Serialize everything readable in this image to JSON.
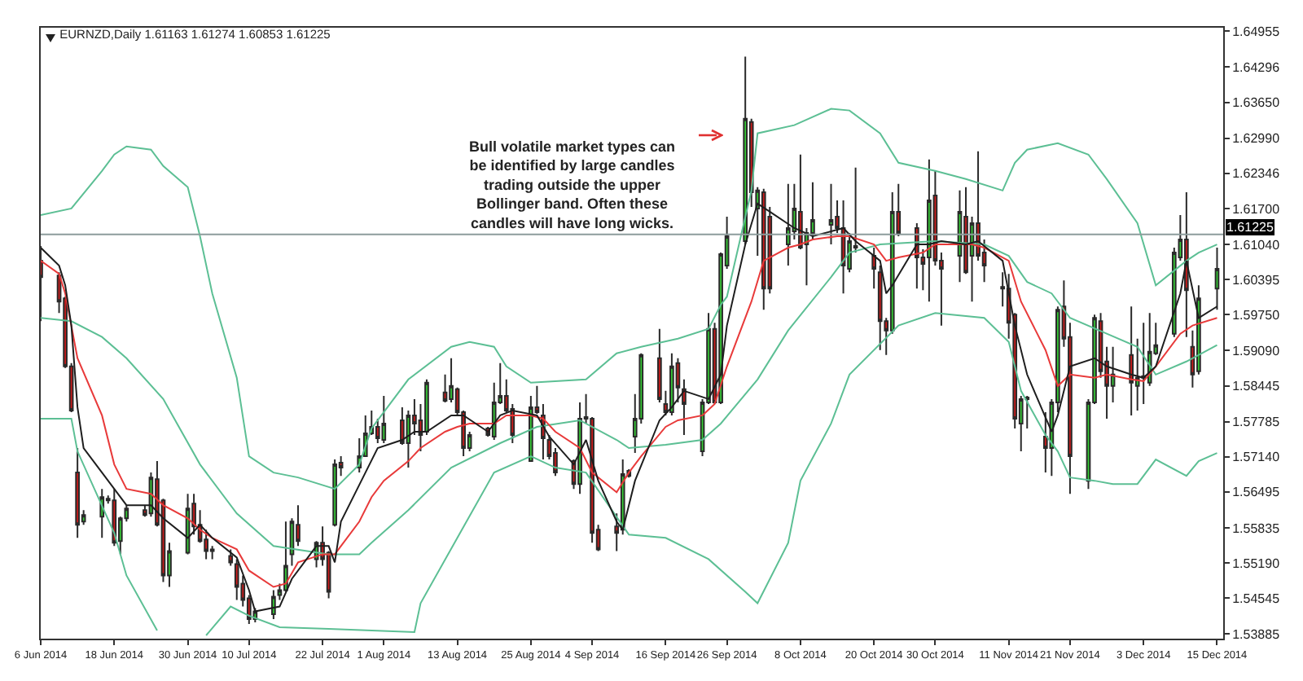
{
  "chart_data": {
    "type": "candlestick",
    "title": "EURNZD,Daily 1.61163 1.61274 1.60853 1.61225",
    "x": [
      "2014-06-06",
      "2014-06-09",
      "2014-06-10",
      "2014-06-11",
      "2014-06-12",
      "2014-06-13",
      "2014-06-16",
      "2014-06-17",
      "2014-06-18",
      "2014-06-19",
      "2014-06-20",
      "2014-06-23",
      "2014-06-24",
      "2014-06-25",
      "2014-06-26",
      "2014-06-27",
      "2014-06-30",
      "2014-07-01",
      "2014-07-02",
      "2014-07-03",
      "2014-07-04",
      "2014-07-07",
      "2014-07-08",
      "2014-07-09",
      "2014-07-10",
      "2014-07-11",
      "2014-07-14",
      "2014-07-15",
      "2014-07-16",
      "2014-07-17",
      "2014-07-18",
      "2014-07-21",
      "2014-07-22",
      "2014-07-23",
      "2014-07-24",
      "2014-07-25",
      "2014-07-28",
      "2014-07-29",
      "2014-07-30",
      "2014-07-31",
      "2014-08-01",
      "2014-08-04",
      "2014-08-05",
      "2014-08-06",
      "2014-08-07",
      "2014-08-08",
      "2014-08-11",
      "2014-08-12",
      "2014-08-13",
      "2014-08-14",
      "2014-08-15",
      "2014-08-18",
      "2014-08-19",
      "2014-08-20",
      "2014-08-21",
      "2014-08-22",
      "2014-08-25",
      "2014-08-26",
      "2014-08-27",
      "2014-08-28",
      "2014-08-29",
      "2014-09-01",
      "2014-09-02",
      "2014-09-03",
      "2014-09-04",
      "2014-09-05",
      "2014-09-08",
      "2014-09-09",
      "2014-09-10",
      "2014-09-11",
      "2014-09-12",
      "2014-09-15",
      "2014-09-16",
      "2014-09-17",
      "2014-09-18",
      "2014-09-19",
      "2014-09-22",
      "2014-09-23",
      "2014-09-24",
      "2014-09-25",
      "2014-09-26",
      "2014-09-29",
      "2014-09-30",
      "2014-10-01",
      "2014-10-02",
      "2014-10-03",
      "2014-10-06",
      "2014-10-07",
      "2014-10-08",
      "2014-10-09",
      "2014-10-10",
      "2014-10-13",
      "2014-10-14",
      "2014-10-15",
      "2014-10-16",
      "2014-10-17",
      "2014-10-20",
      "2014-10-21",
      "2014-10-22",
      "2014-10-23",
      "2014-10-24",
      "2014-10-27",
      "2014-10-28",
      "2014-10-29",
      "2014-10-30",
      "2014-10-31",
      "2014-11-03",
      "2014-11-04",
      "2014-11-05",
      "2014-11-06",
      "2014-11-07",
      "2014-11-10",
      "2014-11-11",
      "2014-11-12",
      "2014-11-13",
      "2014-11-14",
      "2014-11-17",
      "2014-11-18",
      "2014-11-19",
      "2014-11-20",
      "2014-11-21",
      "2014-11-24",
      "2014-11-25",
      "2014-11-26",
      "2014-11-27",
      "2014-11-28",
      "2014-12-01",
      "2014-12-02",
      "2014-12-03",
      "2014-12-04",
      "2014-12-05",
      "2014-12-08",
      "2014-12-09",
      "2014-12-10",
      "2014-12-11",
      "2014-12-12",
      "2014-12-15"
    ],
    "ohlc": [
      [
        1.6074,
        1.6101,
        1.5963,
        1.6044
      ],
      [
        1.6047,
        1.6053,
        1.5978,
        1.5999
      ],
      [
        1.6005,
        1.6008,
        1.5877,
        1.588
      ],
      [
        1.588,
        1.5886,
        1.5796,
        1.5799
      ],
      [
        1.5685,
        1.573,
        1.5565,
        1.5589
      ],
      [
        1.5595,
        1.5616,
        1.5589,
        1.5607
      ],
      [
        1.5604,
        1.5655,
        1.5565,
        1.564
      ],
      [
        1.5634,
        1.5643,
        1.5628,
        1.5637
      ],
      [
        1.5634,
        1.5655,
        1.555,
        1.5556
      ],
      [
        1.5559,
        1.5604,
        1.5535,
        1.5601
      ],
      [
        1.5601,
        1.5625,
        1.5595,
        1.5619
      ],
      [
        1.5616,
        1.5625,
        1.5604,
        1.5607
      ],
      [
        1.561,
        1.5685,
        1.5604,
        1.5676
      ],
      [
        1.5673,
        1.5706,
        1.5586,
        1.5589
      ],
      [
        1.5634,
        1.5637,
        1.5484,
        1.5496
      ],
      [
        1.5496,
        1.5556,
        1.5475,
        1.5541
      ],
      [
        1.5538,
        1.5646,
        1.5535,
        1.5619
      ],
      [
        1.5628,
        1.5646,
        1.5571,
        1.5586
      ],
      [
        1.5589,
        1.5616,
        1.5556,
        1.5559
      ],
      [
        1.5562,
        1.558,
        1.5526,
        1.5541
      ],
      [
        1.5544,
        1.555,
        1.5526,
        1.5541
      ],
      [
        1.5532,
        1.5544,
        1.5514,
        1.552
      ],
      [
        1.5517,
        1.5526,
        1.5451,
        1.5475
      ],
      [
        1.5481,
        1.5496,
        1.5439,
        1.5451
      ],
      [
        1.5454,
        1.546,
        1.5407,
        1.5416
      ],
      [
        1.5416,
        1.5436,
        1.541,
        1.543
      ],
      [
        1.5425,
        1.5469,
        1.5416,
        1.5457
      ],
      [
        1.546,
        1.5481,
        1.5451,
        1.5469
      ],
      [
        1.5469,
        1.5595,
        1.5466,
        1.5514
      ],
      [
        1.5535,
        1.5601,
        1.5514,
        1.5595
      ],
      [
        1.5589,
        1.5625,
        1.555,
        1.5559
      ],
      [
        1.5526,
        1.5559,
        1.5511,
        1.5556
      ],
      [
        1.5556,
        1.5586,
        1.5514,
        1.5526
      ],
      [
        1.5538,
        1.5541,
        1.5454,
        1.5466
      ],
      [
        1.5589,
        1.5709,
        1.5586,
        1.57
      ],
      [
        1.5703,
        1.5715,
        1.5679,
        1.5694
      ],
      [
        1.5694,
        1.5748,
        1.5685,
        1.5715
      ],
      [
        1.5715,
        1.579,
        1.5715,
        1.5757
      ],
      [
        1.5757,
        1.5799,
        1.5754,
        1.5769
      ],
      [
        1.5769,
        1.5784,
        1.5739,
        1.5748
      ],
      [
        1.5745,
        1.5826,
        1.5739,
        1.5775
      ],
      [
        1.5781,
        1.5805,
        1.5736,
        1.5739
      ],
      [
        1.5739,
        1.5799,
        1.5694,
        1.579
      ],
      [
        1.579,
        1.582,
        1.5754,
        1.5775
      ],
      [
        1.5781,
        1.5811,
        1.5724,
        1.5754
      ],
      [
        1.576,
        1.5856,
        1.5754,
        1.585
      ],
      [
        1.5832,
        1.5865,
        1.5814,
        1.5817
      ],
      [
        1.582,
        1.5895,
        1.5814,
        1.5844
      ],
      [
        1.5838,
        1.5841,
        1.579,
        1.5796
      ],
      [
        1.5796,
        1.5799,
        1.5715,
        1.573
      ],
      [
        1.573,
        1.576,
        1.5724,
        1.5754
      ],
      [
        1.5766,
        1.5769,
        1.5751,
        1.5754
      ],
      [
        1.5751,
        1.585,
        1.5745,
        1.5814
      ],
      [
        1.5814,
        1.5886,
        1.5811,
        1.5826
      ],
      [
        1.5826,
        1.5856,
        1.5796,
        1.5799
      ],
      [
        1.5802,
        1.5811,
        1.5739,
        1.5754
      ],
      [
        1.5706,
        1.5826,
        1.5706,
        1.5805
      ],
      [
        1.5805,
        1.5844,
        1.5793,
        1.5796
      ],
      [
        1.579,
        1.5811,
        1.5709,
        1.5748
      ],
      [
        1.5745,
        1.5754,
        1.5709,
        1.5715
      ],
      [
        1.5721,
        1.573,
        1.5679,
        1.5685
      ],
      [
        1.5706,
        1.5709,
        1.5655,
        1.5664
      ],
      [
        1.5664,
        1.5814,
        1.5646,
        1.5784
      ],
      [
        1.5784,
        1.5829,
        1.5775,
        1.5787
      ],
      [
        1.5784,
        1.5787,
        1.5556,
        1.5574
      ],
      [
        1.558,
        1.5589,
        1.5541,
        1.5544
      ],
      [
        1.5586,
        1.561,
        1.5541,
        1.5574
      ],
      [
        1.558,
        1.5709,
        1.5571,
        1.5682
      ],
      [
        1.5688,
        1.5691,
        1.5676,
        1.5679
      ],
      [
        1.5751,
        1.5829,
        1.5721,
        1.5784
      ],
      [
        1.5784,
        1.5904,
        1.5775,
        1.5901
      ],
      [
        1.5895,
        1.5949,
        1.5814,
        1.582
      ],
      [
        1.5811,
        1.5835,
        1.579,
        1.5796
      ],
      [
        1.5796,
        1.5904,
        1.579,
        1.588
      ],
      [
        1.5886,
        1.5895,
        1.5814,
        1.5841
      ],
      [
        1.5838,
        1.5856,
        1.5754,
        1.5811
      ],
      [
        1.5724,
        1.582,
        1.5715,
        1.5814
      ],
      [
        1.5814,
        1.5978,
        1.5811,
        1.5949
      ],
      [
        1.5949,
        1.596,
        1.5811,
        1.5814
      ],
      [
        1.5814,
        1.6089,
        1.5811,
        1.6086
      ],
      [
        1.6065,
        1.6155,
        1.6059,
        1.6119
      ],
      [
        1.611,
        1.6449,
        1.6104,
        1.6335
      ],
      [
        1.6329,
        1.6335,
        1.6173,
        1.62
      ],
      [
        1.617,
        1.6209,
        1.6083,
        1.6203
      ],
      [
        1.62,
        1.6206,
        1.5984,
        1.6023
      ],
      [
        1.6155,
        1.6173,
        1.6014,
        1.6023
      ],
      [
        1.6104,
        1.6215,
        1.6065,
        1.6134
      ],
      [
        1.6128,
        1.6215,
        1.6113,
        1.617
      ],
      [
        1.6164,
        1.6269,
        1.6095,
        1.6098
      ],
      [
        1.6104,
        1.6134,
        1.6029,
        1.6125
      ],
      [
        1.6125,
        1.6218,
        1.6113,
        1.6149
      ],
      [
        1.614,
        1.6215,
        1.6104,
        1.6149
      ],
      [
        1.6155,
        1.6185,
        1.6125,
        1.6134
      ],
      [
        1.6134,
        1.6185,
        1.6014,
        1.6065
      ],
      [
        1.6059,
        1.6125,
        1.6053,
        1.611
      ],
      [
        1.6098,
        1.6245,
        1.6089,
        1.6101
      ],
      [
        1.6083,
        1.6098,
        1.6023,
        1.6059
      ],
      [
        1.6053,
        1.6065,
        1.591,
        1.5963
      ],
      [
        1.5963,
        1.5969,
        1.5901,
        1.5946
      ],
      [
        1.5946,
        1.62,
        1.594,
        1.6164
      ],
      [
        1.6164,
        1.6215,
        1.6119,
        1.6125
      ],
      [
        1.6134,
        1.6143,
        1.6023,
        1.608
      ],
      [
        1.608,
        1.6095,
        1.602,
        1.6068
      ],
      [
        1.608,
        1.626,
        1.5999,
        1.6185
      ],
      [
        1.6194,
        1.6239,
        1.6065,
        1.6074
      ],
      [
        1.6074,
        1.6089,
        1.5955,
        1.6059
      ],
      [
        1.6083,
        1.6203,
        1.6035,
        1.6164
      ],
      [
        1.6155,
        1.6209,
        1.605,
        1.6053
      ],
      [
        1.6083,
        1.6155,
        1.5999,
        1.6143
      ],
      [
        1.6143,
        1.6275,
        1.6074,
        1.6083
      ],
      [
        1.6089,
        1.6113,
        1.6035,
        1.6065
      ],
      [
        1.6023,
        1.6053,
        1.599,
        1.6026
      ],
      [
        1.6023,
        1.605,
        1.5931,
        1.596
      ],
      [
        1.5975,
        1.5978,
        1.5766,
        1.5784
      ],
      [
        1.5775,
        1.5826,
        1.5724,
        1.582
      ],
      [
        1.582,
        1.5826,
        1.5766,
        1.5823
      ],
      [
        1.5751,
        1.5796,
        1.5685,
        1.573
      ],
      [
        1.573,
        1.582,
        1.5679,
        1.5814
      ],
      [
        1.5814,
        1.599,
        1.5796,
        1.5984
      ],
      [
        1.599,
        1.6038,
        1.5916,
        1.5931
      ],
      [
        1.5934,
        1.596,
        1.5646,
        1.5715
      ],
      [
        1.567,
        1.582,
        1.5655,
        1.5814
      ],
      [
        1.5814,
        1.5975,
        1.5811,
        1.5969
      ],
      [
        1.5963,
        1.5978,
        1.5859,
        1.5871
      ],
      [
        1.5889,
        1.5916,
        1.5784,
        1.5844
      ],
      [
        1.5844,
        1.5916,
        1.5814,
        1.5865
      ],
      [
        1.5901,
        1.599,
        1.579,
        1.585
      ],
      [
        1.5844,
        1.5931,
        1.5799,
        1.5859
      ],
      [
        1.5859,
        1.596,
        1.5811,
        1.5862
      ],
      [
        1.585,
        1.5978,
        1.5844,
        1.5907
      ],
      [
        1.5904,
        1.596,
        1.5901,
        1.5919
      ],
      [
        1.594,
        1.6098,
        1.5934,
        1.6089
      ],
      [
        1.608,
        1.6158,
        1.6074,
        1.6113
      ],
      [
        1.6113,
        1.62,
        1.5934,
        1.602
      ],
      [
        1.5916,
        1.5946,
        1.5841,
        1.5865
      ],
      [
        1.5871,
        1.6029,
        1.5865,
        1.6005
      ],
      [
        1.6023,
        1.6098,
        1.5984,
        1.6059
      ]
    ],
    "series": [
      {
        "type": "line",
        "color": "#5cbf94",
        "x": [
          "2014-06-06",
          "2014-06-11",
          "2014-06-16",
          "2014-06-18",
          "2014-06-20",
          "2014-06-24",
          "2014-06-26",
          "2014-06-30",
          "2014-07-02",
          "2014-07-04",
          "2014-07-08",
          "2014-07-10",
          "2014-07-14",
          "2014-07-18",
          "2014-07-24",
          "2014-07-28",
          "2014-07-30",
          "2014-08-05",
          "2014-08-12",
          "2014-08-15",
          "2014-08-19",
          "2014-08-21",
          "2014-08-25",
          "2014-09-03",
          "2014-09-08",
          "2014-09-12",
          "2014-09-18",
          "2014-09-23",
          "2014-09-25",
          "2014-09-26",
          "2014-09-30",
          "2014-10-01",
          "2014-10-07",
          "2014-10-13",
          "2014-10-16",
          "2014-10-21",
          "2014-10-24",
          "2014-10-30",
          "2014-11-04",
          "2014-11-10",
          "2014-11-12",
          "2014-11-14",
          "2014-11-19",
          "2014-11-24",
          "2014-11-27",
          "2014-12-02",
          "2014-12-05",
          "2014-12-10",
          "2014-12-12",
          "2014-12-15"
        ],
        "values": [
          1.6158,
          1.617,
          1.6239,
          1.6269,
          1.6284,
          1.6278,
          1.6248,
          1.6209,
          1.6119,
          1.6014,
          1.5859,
          1.5715,
          1.5685,
          1.5676,
          1.5655,
          1.57,
          1.5766,
          1.5856,
          1.5916,
          1.5925,
          1.5916,
          1.588,
          1.585,
          1.5856,
          1.5904,
          1.5916,
          1.5931,
          1.5949,
          1.5993,
          1.6008,
          1.6203,
          1.6308,
          1.6323,
          1.6353,
          1.635,
          1.6308,
          1.6254,
          1.6239,
          1.6224,
          1.6203,
          1.6254,
          1.6278,
          1.629,
          1.6269,
          1.6224,
          1.6143,
          1.6029,
          1.6074,
          1.6089,
          1.6104
        ]
      },
      {
        "type": "line",
        "color": "#5cbf94",
        "x": [
          "2014-06-06",
          "2014-06-11",
          "2014-06-16",
          "2014-06-20",
          "2014-06-26",
          "2014-07-02",
          "2014-07-08",
          "2014-07-14",
          "2014-07-23",
          "2014-07-28",
          "2014-07-30",
          "2014-08-05",
          "2014-08-12",
          "2014-08-20",
          "2014-08-26",
          "2014-09-02",
          "2014-09-08",
          "2014-09-10",
          "2014-09-16",
          "2014-09-22",
          "2014-09-25",
          "2014-10-01",
          "2014-10-06",
          "2014-10-13",
          "2014-10-16",
          "2014-10-21",
          "2014-10-30",
          "2014-11-07",
          "2014-11-11",
          "2014-11-14",
          "2014-11-18",
          "2014-11-21",
          "2014-11-27",
          "2014-12-02",
          "2014-12-05",
          "2014-12-10",
          "2014-12-15"
        ],
        "values": [
          1.5969,
          1.5963,
          1.5934,
          1.5895,
          1.582,
          1.57,
          1.561,
          1.555,
          1.5535,
          1.5535,
          1.5556,
          1.5616,
          1.5694,
          1.5739,
          1.5769,
          1.5781,
          1.5745,
          1.573,
          1.5736,
          1.5745,
          1.5775,
          1.5856,
          1.5946,
          1.6044,
          1.6089,
          1.6104,
          1.611,
          1.6104,
          1.6083,
          1.6035,
          1.6014,
          1.5969,
          1.594,
          1.5916,
          1.5865,
          1.5889,
          1.5919
        ]
      },
      {
        "type": "line",
        "color": "#5cbf94",
        "x": [
          "2014-06-06",
          "2014-06-11",
          "2014-06-12",
          "2014-06-18",
          "2014-06-20",
          "2014-06-25",
          "2014-06-30",
          "2014-07-03",
          "2014-07-07",
          "2014-07-10",
          "2014-07-15",
          "2014-07-23",
          "2014-08-06",
          "2014-08-07",
          "2014-08-13",
          "2014-08-19",
          "2014-08-25",
          "2014-08-29",
          "2014-09-03",
          "2014-09-10",
          "2014-09-16",
          "2014-09-23",
          "2014-09-29",
          "2014-10-01",
          "2014-10-06",
          "2014-10-08",
          "2014-10-13",
          "2014-10-16",
          "2014-10-24",
          "2014-10-30",
          "2014-11-07",
          "2014-11-11",
          "2014-11-13",
          "2014-11-17",
          "2014-11-19",
          "2014-11-21",
          "2014-11-25",
          "2014-11-28",
          "2014-12-02",
          "2014-12-05",
          "2014-12-10",
          "2014-12-12",
          "2014-12-15"
        ],
        "values": [
          1.5784,
          1.5784,
          1.5724,
          1.5574,
          1.5496,
          1.5395,
          null,
          1.5386,
          1.5439,
          1.5422,
          1.5401,
          1.5398,
          1.5392,
          1.5445,
          1.5565,
          1.5685,
          1.5715,
          1.5694,
          1.5685,
          1.5571,
          1.5565,
          1.5526,
          1.5466,
          1.5445,
          1.5556,
          1.567,
          1.5775,
          1.5865,
          1.5955,
          1.5978,
          1.5969,
          1.5925,
          1.5835,
          1.5754,
          1.5724,
          1.5676,
          1.567,
          1.5664,
          1.5664,
          1.5709,
          1.5679,
          1.5706,
          1.5721
        ]
      },
      {
        "type": "line",
        "color": "#e83a3a",
        "x": [
          "2014-06-06",
          "2014-06-09",
          "2014-06-10",
          "2014-06-12",
          "2014-06-16",
          "2014-06-18",
          "2014-06-20",
          "2014-06-24",
          "2014-06-26",
          "2014-06-30",
          "2014-07-02",
          "2014-07-04",
          "2014-07-08",
          "2014-07-10",
          "2014-07-14",
          "2014-07-16",
          "2014-07-18",
          "2014-07-22",
          "2014-07-24",
          "2014-07-28",
          "2014-07-30",
          "2014-08-01",
          "2014-08-05",
          "2014-08-07",
          "2014-08-11",
          "2014-08-13",
          "2014-08-15",
          "2014-08-19",
          "2014-08-21",
          "2014-08-25",
          "2014-08-27",
          "2014-08-29",
          "2014-09-02",
          "2014-09-04",
          "2014-09-08",
          "2014-09-10",
          "2014-09-12",
          "2014-09-16",
          "2014-09-18",
          "2014-09-22",
          "2014-09-24",
          "2014-09-26",
          "2014-09-30",
          "2014-10-02",
          "2014-10-06",
          "2014-10-08",
          "2014-10-10",
          "2014-10-14",
          "2014-10-16",
          "2014-10-20",
          "2014-10-22",
          "2014-10-24",
          "2014-10-28",
          "2014-10-30",
          "2014-11-03",
          "2014-11-05",
          "2014-11-07",
          "2014-11-11",
          "2014-11-13",
          "2014-11-17",
          "2014-11-19",
          "2014-11-21",
          "2014-11-25",
          "2014-11-27",
          "2014-12-01",
          "2014-12-03",
          "2014-12-05",
          "2014-12-09",
          "2014-12-11",
          "2014-12-15"
        ],
        "values": [
          1.6074,
          1.605,
          1.6014,
          1.5895,
          1.579,
          1.57,
          1.5655,
          1.5646,
          1.5625,
          1.5601,
          1.558,
          1.5565,
          1.5544,
          1.5505,
          1.5475,
          1.5481,
          1.552,
          1.5535,
          1.5535,
          1.5595,
          1.564,
          1.567,
          1.5706,
          1.573,
          1.576,
          1.5769,
          1.5775,
          1.5775,
          1.579,
          1.579,
          1.5784,
          1.576,
          1.573,
          1.5685,
          1.5649,
          1.5685,
          1.5715,
          1.5769,
          1.5781,
          1.579,
          1.5811,
          1.588,
          1.5999,
          1.6074,
          1.6098,
          1.6104,
          1.6113,
          1.6119,
          1.6119,
          1.6104,
          1.6074,
          1.608,
          1.6089,
          1.6104,
          1.6104,
          1.6104,
          1.6098,
          1.6074,
          1.5999,
          1.591,
          1.5844,
          1.5865,
          1.5859,
          1.5865,
          1.5856,
          1.5853,
          1.588,
          1.594,
          1.5955,
          1.5969
        ]
      },
      {
        "type": "line",
        "color": "#1e1e1e",
        "x": [
          "2014-06-06",
          "2014-06-09",
          "2014-06-10",
          "2014-06-11",
          "2014-06-12",
          "2014-06-13",
          "2014-06-16",
          "2014-06-18",
          "2014-06-20",
          "2014-06-24",
          "2014-06-26",
          "2014-06-30",
          "2014-07-02",
          "2014-07-04",
          "2014-07-08",
          "2014-07-10",
          "2014-07-11",
          "2014-07-15",
          "2014-07-17",
          "2014-07-21",
          "2014-07-23",
          "2014-07-24",
          "2014-07-25",
          "2014-07-29",
          "2014-07-31",
          "2014-08-04",
          "2014-08-06",
          "2014-08-08",
          "2014-08-12",
          "2014-08-14",
          "2014-08-18",
          "2014-08-20",
          "2014-08-22",
          "2014-08-26",
          "2014-08-28",
          "2014-09-01",
          "2014-09-03",
          "2014-09-05",
          "2014-09-08",
          "2014-09-09",
          "2014-09-11",
          "2014-09-15",
          "2014-09-17",
          "2014-09-19",
          "2014-09-23",
          "2014-09-25",
          "2014-09-26",
          "2014-09-29",
          "2014-10-01",
          "2014-10-03",
          "2014-10-07",
          "2014-10-10",
          "2014-10-15",
          "2014-10-17",
          "2014-10-21",
          "2014-10-22",
          "2014-10-23",
          "2014-10-27",
          "2014-10-29",
          "2014-10-31",
          "2014-11-04",
          "2014-11-06",
          "2014-11-10",
          "2014-11-12",
          "2014-11-14",
          "2014-11-18",
          "2014-11-19",
          "2014-11-21",
          "2014-11-25",
          "2014-11-27",
          "2014-12-01",
          "2014-12-03",
          "2014-12-05",
          "2014-12-09",
          "2014-12-10",
          "2014-12-12",
          "2014-12-15"
        ],
        "values": [
          1.6098,
          1.6065,
          1.6029,
          1.5955,
          1.5805,
          1.573,
          1.5685,
          1.5655,
          1.5625,
          1.5625,
          1.5601,
          1.5565,
          1.5589,
          1.5565,
          1.5529,
          1.5469,
          1.543,
          1.5439,
          1.549,
          1.555,
          1.555,
          1.552,
          1.5595,
          1.5685,
          1.573,
          1.5745,
          1.576,
          1.576,
          1.579,
          1.579,
          1.576,
          1.579,
          1.5799,
          1.579,
          1.5751,
          1.57,
          1.5745,
          1.567,
          1.5595,
          1.558,
          1.567,
          1.5781,
          1.5805,
          1.5835,
          1.582,
          1.5865,
          1.5955,
          1.6104,
          1.6179,
          1.6164,
          1.6134,
          1.6119,
          1.6134,
          1.611,
          1.6074,
          1.6014,
          1.6029,
          1.6104,
          1.6104,
          1.611,
          1.6104,
          1.611,
          1.6074,
          1.5955,
          1.5865,
          1.576,
          1.579,
          1.588,
          1.5895,
          1.588,
          1.5865,
          1.5859,
          1.588,
          1.6014,
          1.6074,
          1.5969,
          1.599
        ]
      }
    ],
    "xlim": [
      "2014-06-06",
      "2014-12-16"
    ],
    "xticks": [
      {
        "value": "2014-06-06",
        "label": "6 Jun 2014"
      },
      {
        "value": "2014-06-18",
        "label": "18 Jun 2014"
      },
      {
        "value": "2014-06-30",
        "label": "30 Jun 2014"
      },
      {
        "value": "2014-07-10",
        "label": "10 Jul 2014"
      },
      {
        "value": "2014-07-22",
        "label": "22 Jul 2014"
      },
      {
        "value": "2014-08-01",
        "label": "1 Aug 2014"
      },
      {
        "value": "2014-08-13",
        "label": "13 Aug 2014"
      },
      {
        "value": "2014-08-25",
        "label": "25 Aug 2014"
      },
      {
        "value": "2014-09-04",
        "label": "4 Sep 2014"
      },
      {
        "value": "2014-09-16",
        "label": "16 Sep 2014"
      },
      {
        "value": "2014-09-26",
        "label": "26 Sep 2014"
      },
      {
        "value": "2014-10-08",
        "label": "8 Oct 2014"
      },
      {
        "value": "2014-10-20",
        "label": "20 Oct 2014"
      },
      {
        "value": "2014-10-30",
        "label": "30 Oct 2014"
      },
      {
        "value": "2014-11-11",
        "label": "11 Nov 2014"
      },
      {
        "value": "2014-11-21",
        "label": "21 Nov 2014"
      },
      {
        "value": "2014-12-03",
        "label": "3 Dec 2014"
      },
      {
        "value": "2014-12-15",
        "label": "15 Dec 2014"
      }
    ],
    "ylim": [
      1.538,
      1.6502
    ],
    "yticks": [
      1.64955,
      1.64296,
      {
        "value": 1.6365,
        "label": "1.63650"
      },
      {
        "value": 1.6299,
        "label": "1.62990"
      },
      1.62346,
      {
        "value": 1.617,
        "label": "1.61700"
      },
      {
        "value": 1.6104,
        "label": "1.61040"
      },
      1.60395,
      {
        "value": 1.5975,
        "label": "1.59750"
      },
      {
        "value": 1.5909,
        "label": "1.59090"
      },
      1.58445,
      1.57785,
      {
        "value": 1.5714,
        "label": "1.57140"
      },
      1.56495,
      1.55835,
      {
        "value": 1.5519,
        "label": "1.55190"
      },
      1.54545,
      1.53885
    ],
    "ref_lines": [
      {
        "axis": "y",
        "value": 1.61225,
        "label": "1.61225",
        "color": "#8c9c9c"
      }
    ],
    "annotations": [
      "Bull volatile market types can be identified by large candles trading outside the upper Bollinger band. Often these candles will have long wicks."
    ]
  }
}
